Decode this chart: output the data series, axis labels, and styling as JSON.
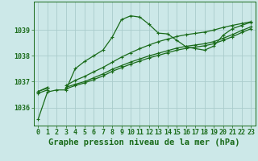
{
  "title": "Graphe pression niveau de la mer (hPa)",
  "background_color": "#cce8e8",
  "plot_bg_color": "#cce8e8",
  "grid_color": "#aacccc",
  "line_color": "#1a6b1a",
  "x_min": -0.5,
  "x_max": 23.5,
  "y_min": 1035.3,
  "y_max": 1040.1,
  "yticks": [
    1036,
    1037,
    1038,
    1039
  ],
  "xticks": [
    0,
    1,
    2,
    3,
    4,
    5,
    6,
    7,
    8,
    9,
    10,
    11,
    12,
    13,
    14,
    15,
    16,
    17,
    18,
    19,
    20,
    21,
    22,
    23
  ],
  "series": [
    [
      1035.55,
      1036.6,
      null,
      1036.65,
      null,
      null,
      null,
      null,
      null,
      1039.4,
      1039.55,
      1039.5,
      null,
      null,
      1038.85,
      1038.6,
      null,
      null,
      null,
      null,
      null,
      null,
      null,
      1039.3
    ],
    [
      1036.62,
      1036.78,
      null,
      1036.85,
      1037.05,
      1037.2,
      1037.38,
      1037.55,
      1037.75,
      1037.95,
      1038.12,
      1038.28,
      1038.42,
      1038.55,
      1038.65,
      1038.75,
      1038.82,
      1038.87,
      1038.92,
      1039.0,
      1039.1,
      1039.18,
      1039.25,
      1039.32
    ],
    [
      1036.62,
      1036.75,
      null,
      1036.78,
      1036.9,
      1037.0,
      1037.15,
      1037.3,
      1037.48,
      1037.62,
      1037.76,
      1037.88,
      1038.0,
      1038.1,
      1038.2,
      1038.3,
      1038.37,
      1038.42,
      1038.47,
      1038.55,
      1038.68,
      1038.82,
      1038.98,
      1039.12
    ],
    [
      1036.55,
      1036.68,
      null,
      1036.72,
      1036.85,
      1036.95,
      1037.08,
      1037.22,
      1037.4,
      1037.54,
      1037.68,
      1037.8,
      1037.92,
      1038.02,
      1038.12,
      1038.22,
      1038.29,
      1038.34,
      1038.39,
      1038.47,
      1038.6,
      1038.74,
      1038.9,
      1039.05
    ]
  ],
  "series_main": [
    1035.55,
    1036.6,
    1036.68,
    1036.68,
    1037.5,
    1037.78,
    1038.0,
    1038.22,
    1038.72,
    1039.4,
    1039.55,
    1039.5,
    1039.22,
    1038.88,
    1038.85,
    1038.6,
    1038.35,
    1038.28,
    1038.22,
    1038.38,
    1038.8,
    1039.05,
    1039.18,
    1039.3
  ],
  "marker": "+",
  "marker_size": 3.5,
  "line_width": 0.9,
  "title_fontsize": 7.5,
  "tick_fontsize": 6
}
